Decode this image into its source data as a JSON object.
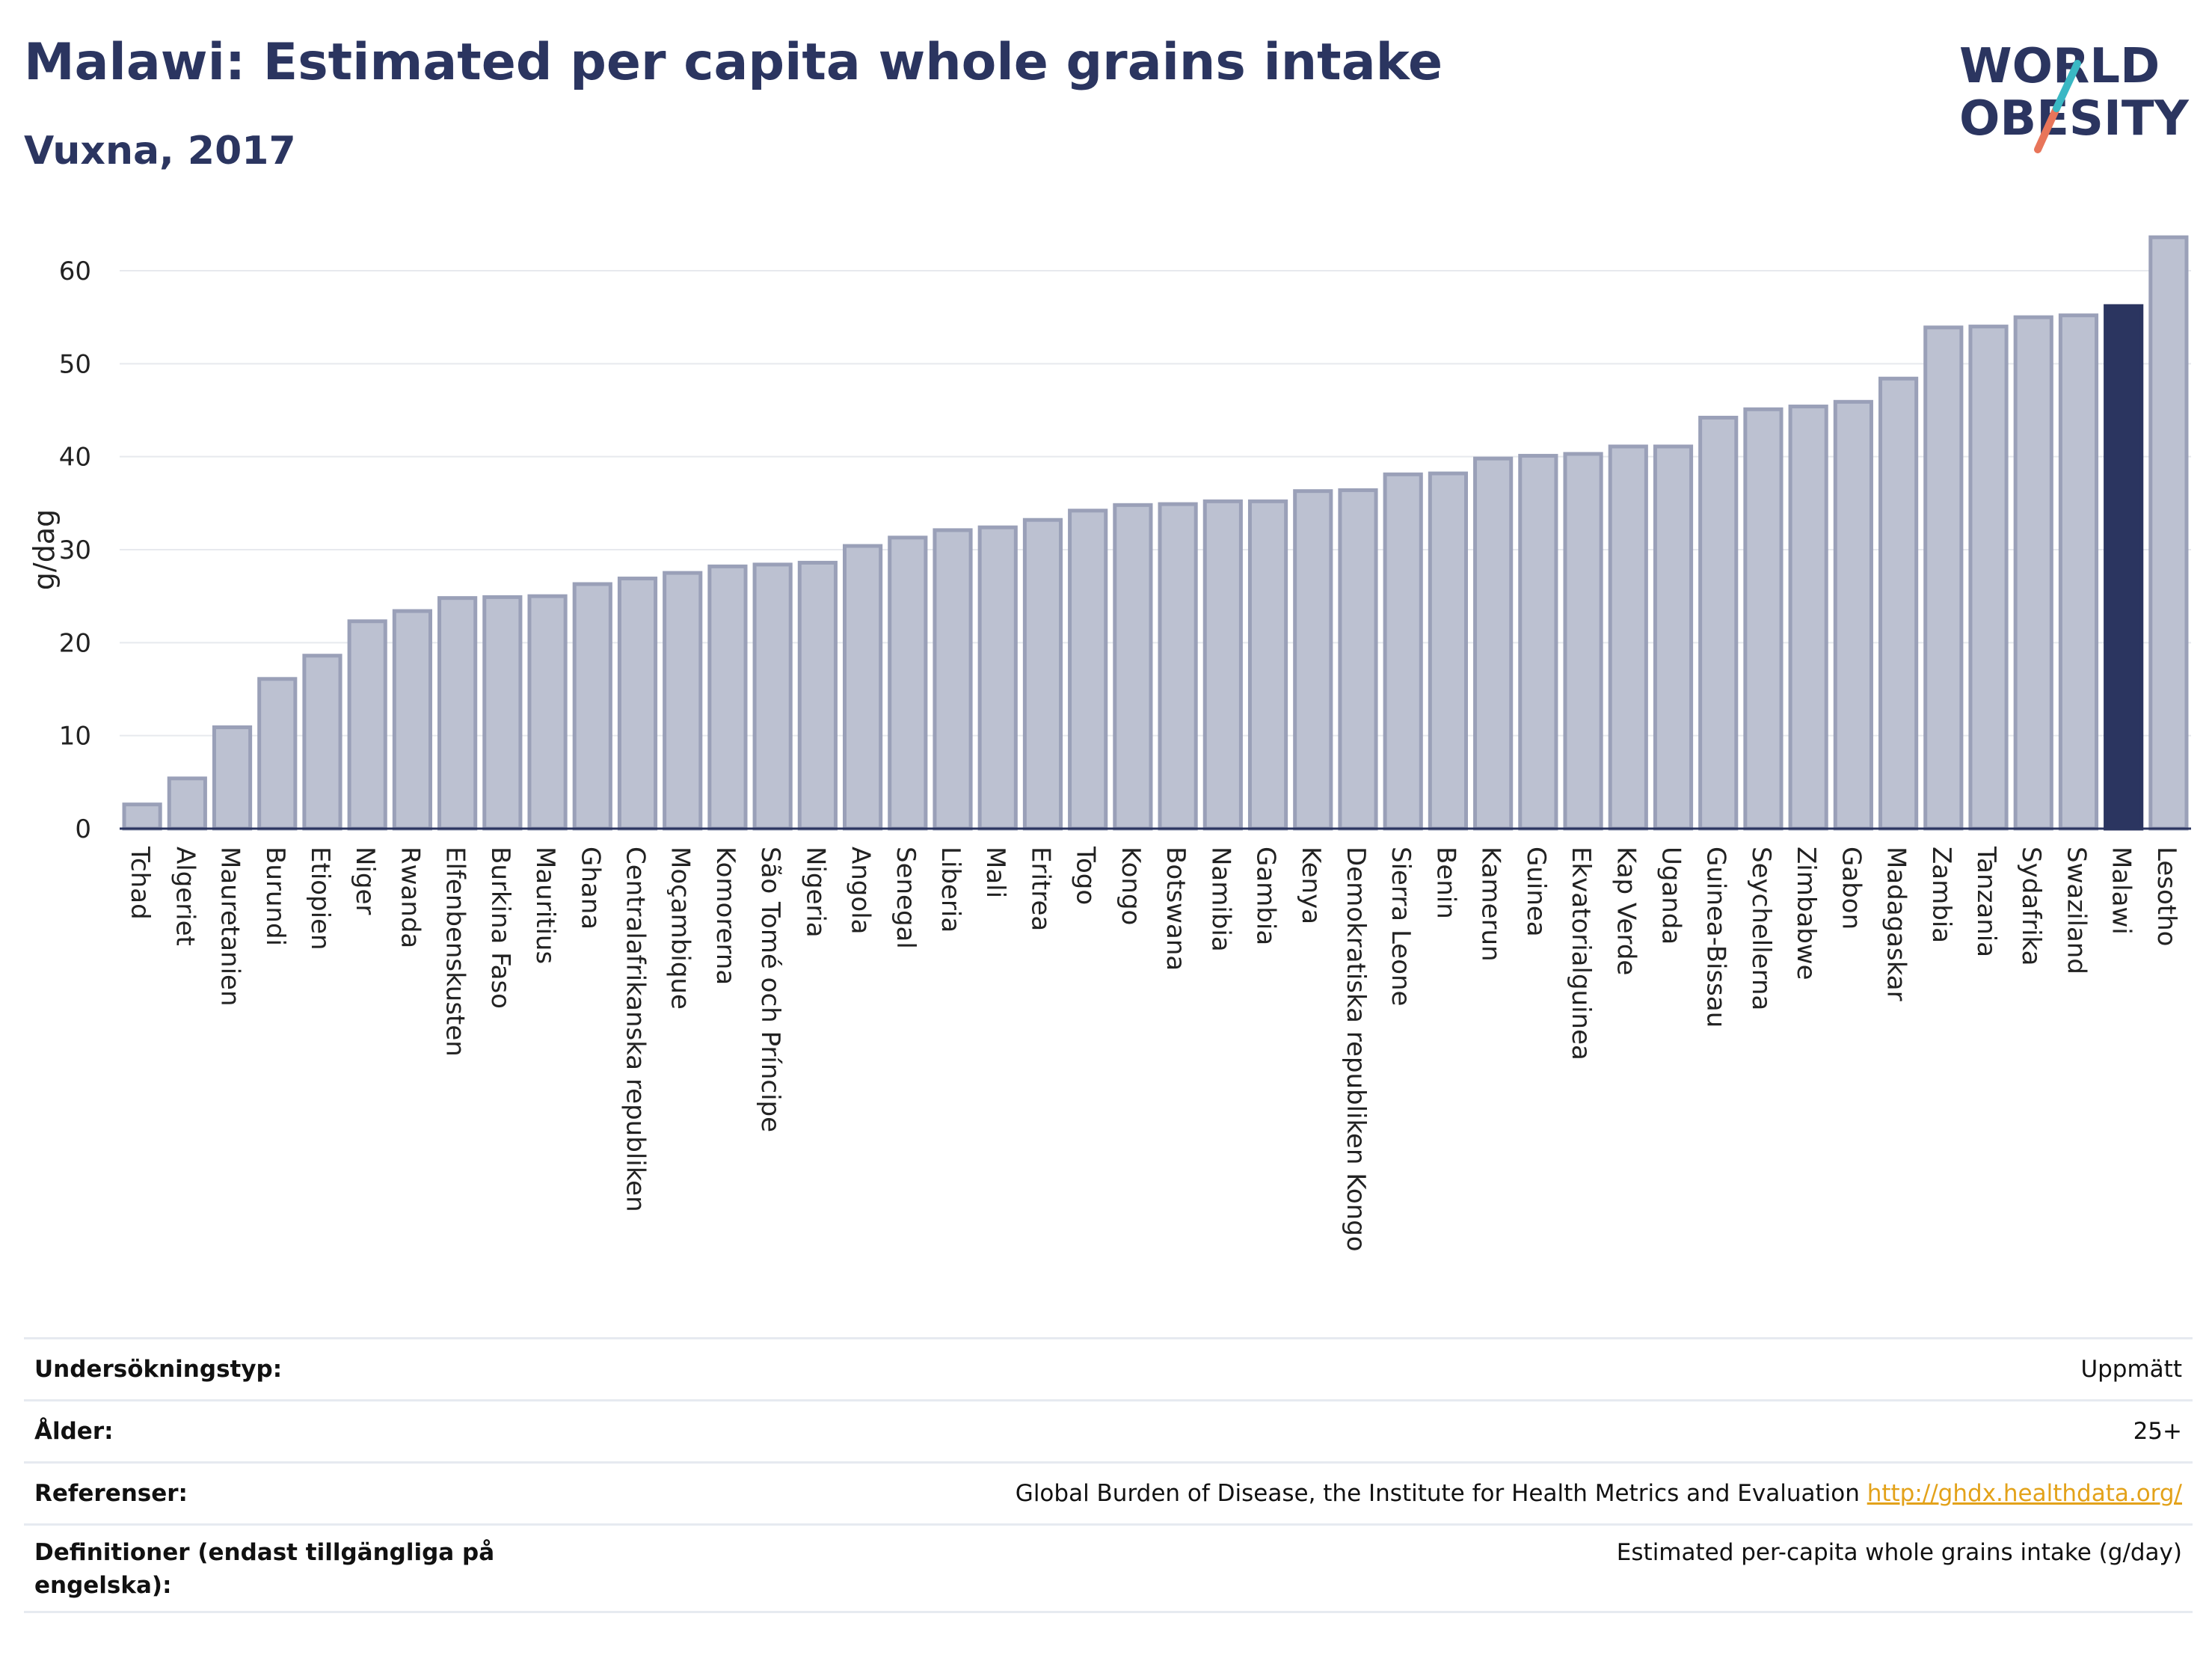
{
  "header": {
    "title": "Malawi: Estimated per capita whole grains intake",
    "subtitle": "Vuxna, 2017"
  },
  "logo": {
    "line1": "WORLD",
    "line2": "OBESITY"
  },
  "colors": {
    "bar": "#bcc1d1",
    "bar_border": "#9aa0b8",
    "highlight": "#2b3560",
    "grid": "#e7e9ee",
    "link": "#e3a21a"
  },
  "chart_data": {
    "type": "bar",
    "ylabel": "g/dag",
    "ylim": [
      0,
      65
    ],
    "yticks": [
      0,
      10,
      20,
      30,
      40,
      50,
      60
    ],
    "highlight": "Malawi",
    "categories": [
      "Tchad",
      "Algeriet",
      "Mauretanien",
      "Burundi",
      "Etiopien",
      "Niger",
      "Rwanda",
      "Elfenbenskusten",
      "Burkina Faso",
      "Mauritius",
      "Ghana",
      "Centralafrikanska republiken",
      "Moçambique",
      "Komorerna",
      "São Tomé och Príncipe",
      "Nigeria",
      "Angola",
      "Senegal",
      "Liberia",
      "Mali",
      "Eritrea",
      "Togo",
      "Kongo",
      "Botswana",
      "Namibia",
      "Gambia",
      "Kenya",
      "Demokratiska republiken Kongo",
      "Sierra Leone",
      "Benin",
      "Kamerun",
      "Guinea",
      "Ekvatorialguinea",
      "Kap Verde",
      "Uganda",
      "Guinea-Bissau",
      "Seychellerna",
      "Zimbabwe",
      "Gabon",
      "Madagaskar",
      "Zambia",
      "Tanzania",
      "Sydafrika",
      "Swaziland",
      "Malawi",
      "Lesotho"
    ],
    "values": [
      2.6,
      5.4,
      10.9,
      16.1,
      18.6,
      22.3,
      23.4,
      24.8,
      24.9,
      25.0,
      26.3,
      26.9,
      27.5,
      28.2,
      28.4,
      28.6,
      30.4,
      31.3,
      32.1,
      32.4,
      33.2,
      34.2,
      34.8,
      34.9,
      35.2,
      35.2,
      36.3,
      36.4,
      38.1,
      38.2,
      39.8,
      40.1,
      40.3,
      41.1,
      41.1,
      44.2,
      45.1,
      45.4,
      45.9,
      48.4,
      53.9,
      54.0,
      55.0,
      55.2,
      56.2,
      63.6
    ]
  },
  "table": [
    {
      "label": "Undersökningstyp:",
      "value": "Uppmätt"
    },
    {
      "label": "Ålder:",
      "value": "25+"
    },
    {
      "label": "Referenser:",
      "value": "Global Burden of Disease, the Institute for Health Metrics and Evaluation",
      "link": "http://ghdx.healthdata.org/"
    },
    {
      "label": "Definitioner (endast tillgängliga på engelska):",
      "value": "Estimated per-capita whole grains intake (g/day)"
    }
  ]
}
